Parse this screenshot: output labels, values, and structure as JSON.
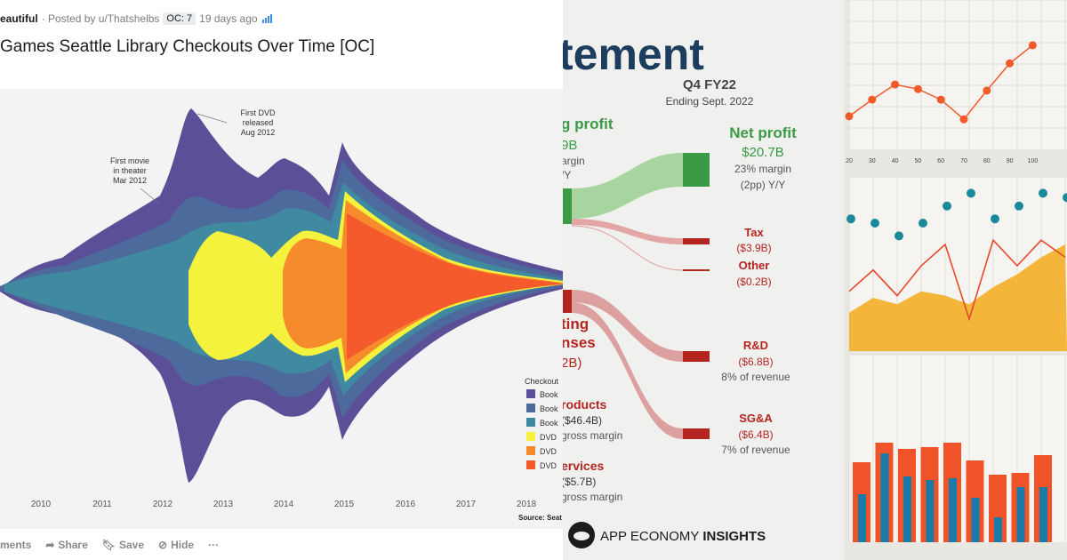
{
  "reddit": {
    "subreddit": "eautiful",
    "posted_by": "· Posted by u/Thatshelbs",
    "flair": "OC: 7",
    "age": "19 days ago",
    "title": "Games Seattle Library Checkouts Over Time [OC]",
    "annotations": [
      "First DVD",
      "released",
      "Aug 2012",
      "First movie",
      "in theater",
      "Mar 2012"
    ],
    "legend_title": "Checkout",
    "legend": [
      {
        "label": "Book",
        "color": "#5b4f97"
      },
      {
        "label": "Book",
        "color": "#4d6a9c"
      },
      {
        "label": "Book",
        "color": "#3f8aa0"
      },
      {
        "label": "DVD",
        "color": "#f4f23d"
      },
      {
        "label": "DVD",
        "color": "#f68b2c"
      },
      {
        "label": "DVD",
        "color": "#f45a2c"
      }
    ],
    "years": [
      "2010",
      "2011",
      "2012",
      "2013",
      "2014",
      "2015",
      "2016",
      "2017",
      "2018"
    ],
    "source": "Source: Seat",
    "actions": {
      "comments": "ments",
      "share": "Share",
      "save": "Save",
      "hide": "Hide",
      "more": "···"
    }
  },
  "statement": {
    "heading": "tement",
    "period": "Q4 FY22",
    "ending": "Ending Sept. 2022",
    "gross_profit": "g profit",
    "gross_value": "9B",
    "gross_margin": "argin",
    "gross_yy": "/Y",
    "net_profit": "Net profit",
    "net_value": "$20.7B",
    "net_margin": "23% margin",
    "net_yy": "(2pp) Y/Y",
    "tax_label": "Tax",
    "tax_value": "($3.9B)",
    "other_label": "Other",
    "other_value": "($0.2B)",
    "opex_1": "ting",
    "opex_2": "nses",
    "opex_value": "2B)",
    "rd_label": "R&D",
    "rd_value": "($6.8B)",
    "rd_pct": "8% of revenue",
    "sga_label": "SG&A",
    "sga_value": "($6.4B)",
    "sga_pct": "7% of revenue",
    "products_label": "roducts",
    "products_value": "($46.4B)",
    "products_margin": "gross margin",
    "services_label": "ervices",
    "services_value": "($5.7B)",
    "services_margin": "gross margin",
    "brand": "APP ECONOMY",
    "brand_bold": "INSIGHTS",
    "colors": {
      "green": "#3b9a46",
      "red": "#b52520",
      "navy": "#1d3d5f"
    }
  },
  "right_charts": {
    "line_chart": {
      "type": "line",
      "x_ticks": [
        "20",
        "30",
        "40",
        "50",
        "60",
        "70",
        "80",
        "90",
        "100"
      ],
      "values": [
        16,
        27,
        37,
        34,
        27,
        14,
        33,
        51,
        63
      ],
      "color": "#f25a2a"
    },
    "area_chart": {
      "type": "area",
      "dots": [
        62,
        60,
        54,
        60,
        68,
        74,
        62,
        68,
        74,
        72
      ],
      "line": [
        28,
        38,
        26,
        40,
        50,
        15,
        52,
        40,
        52,
        44
      ],
      "area": [
        18,
        25,
        22,
        28,
        26,
        22,
        30,
        36,
        44,
        50
      ],
      "colors": {
        "dot": "#1a8a9a",
        "line": "#e8472a",
        "area": "#f4b63a"
      }
    },
    "bar_chart": {
      "type": "bar",
      "orange": [
        90,
        112,
        105,
        107,
        112,
        92,
        76,
        78,
        98
      ],
      "blue": [
        54,
        100,
        74,
        70,
        72,
        50,
        28,
        62,
        62
      ],
      "colors": {
        "orange": "#ef5327",
        "blue": "#1a7aa8"
      }
    }
  }
}
